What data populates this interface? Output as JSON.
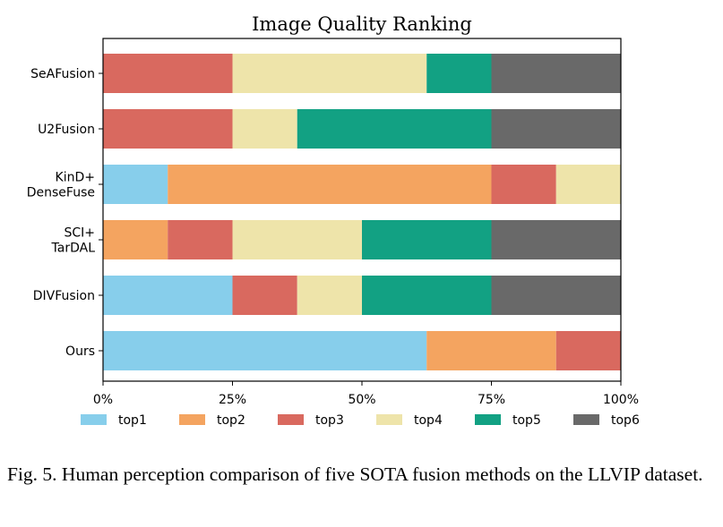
{
  "chart_data": {
    "type": "bar",
    "orientation": "horizontal",
    "stacked": true,
    "title": "Image Quality Ranking",
    "xlabel": "",
    "ylabel": "",
    "xlim": [
      0,
      100
    ],
    "x_ticks": [
      "0%",
      "25%",
      "50%",
      "75%",
      "100%"
    ],
    "categories": [
      [
        "SeAFusion"
      ],
      [
        "U2Fusion"
      ],
      [
        "KinD+",
        "DenseFuse"
      ],
      [
        "SCI+",
        "TarDAL"
      ],
      [
        "DIVFusion"
      ],
      [
        "Ours"
      ]
    ],
    "series": [
      {
        "name": "top1",
        "color": "#87ceeb",
        "values": [
          0,
          0,
          12.5,
          0,
          25,
          62.5
        ]
      },
      {
        "name": "top2",
        "color": "#f4a460",
        "values": [
          0,
          0,
          62.5,
          12.5,
          0,
          25
        ]
      },
      {
        "name": "top3",
        "color": "#d9695f",
        "values": [
          25,
          25,
          12.5,
          12.5,
          12.5,
          12.5
        ]
      },
      {
        "name": "top4",
        "color": "#eee4aa",
        "values": [
          37.5,
          12.5,
          12.5,
          25,
          12.5,
          0
        ]
      },
      {
        "name": "top5",
        "color": "#12a183",
        "values": [
          12.5,
          37.5,
          0,
          25,
          25,
          0
        ]
      },
      {
        "name": "top6",
        "color": "#696969",
        "values": [
          25,
          25,
          0,
          25,
          25,
          0
        ]
      }
    ],
    "legend_position": "bottom",
    "grid": false
  },
  "caption": "Fig. 5.  Human perception comparison of five SOTA fusion methods on the LLVIP dataset."
}
